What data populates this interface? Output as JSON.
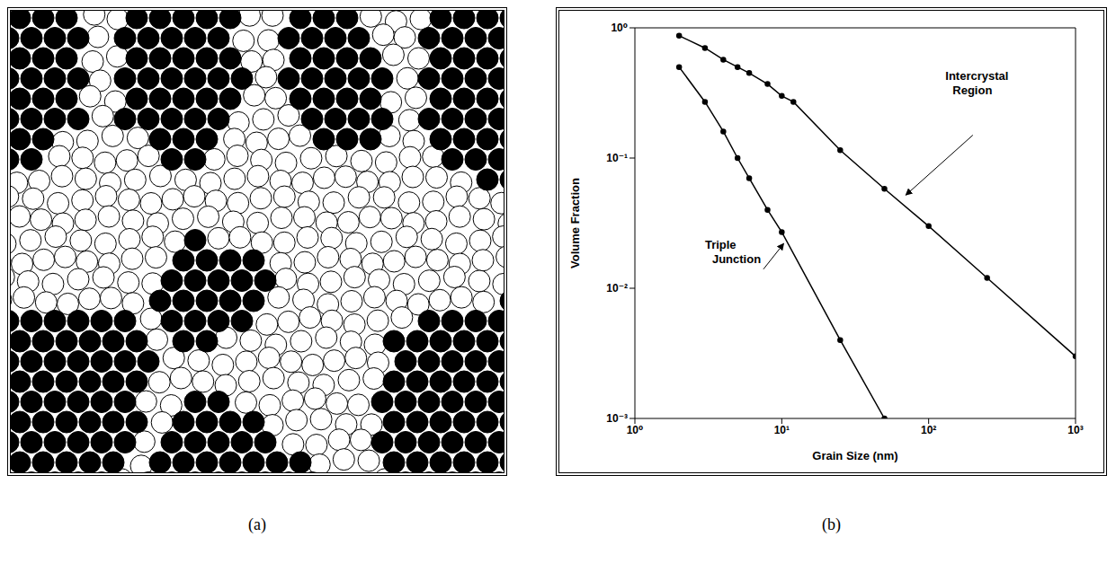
{
  "panel_labels": [
    "(a)",
    "(b)"
  ],
  "chart_data": {
    "type": "line",
    "x_label": "Grain Size (nm)",
    "y_label": "Volume Fraction",
    "log": true,
    "grid": false,
    "marker": "circle",
    "xlim": [
      1,
      1000
    ],
    "ylim": [
      0.001,
      1
    ],
    "xticks": [
      {
        "value": 1,
        "label": "10⁰"
      },
      {
        "value": 10,
        "label": "10¹"
      },
      {
        "value": 100,
        "label": "10²"
      },
      {
        "value": 1000,
        "label": "10³"
      }
    ],
    "yticks": [
      {
        "value": 0.001,
        "label": "10⁻³"
      },
      {
        "value": 0.01,
        "label": "10⁻²"
      },
      {
        "value": 0.1,
        "label": "10⁻¹"
      },
      {
        "value": 1,
        "label": "10⁰"
      }
    ],
    "series": [
      {
        "name": "Intercrystal Region",
        "color": "#000000",
        "x": [
          2,
          3,
          4,
          5,
          6,
          8,
          10,
          12,
          25,
          50,
          100,
          250,
          1000
        ],
        "values": [
          0.87,
          0.7,
          0.57,
          0.5,
          0.45,
          0.37,
          0.3,
          0.27,
          0.115,
          0.058,
          0.03,
          0.012,
          0.003
        ]
      },
      {
        "name": "Triple Junction",
        "color": "#000000",
        "x": [
          2,
          3,
          4,
          5,
          6,
          8,
          10,
          25,
          50
        ],
        "values": [
          0.5,
          0.27,
          0.16,
          0.1,
          0.07,
          0.04,
          0.027,
          0.004,
          0.001
        ]
      }
    ]
  }
}
